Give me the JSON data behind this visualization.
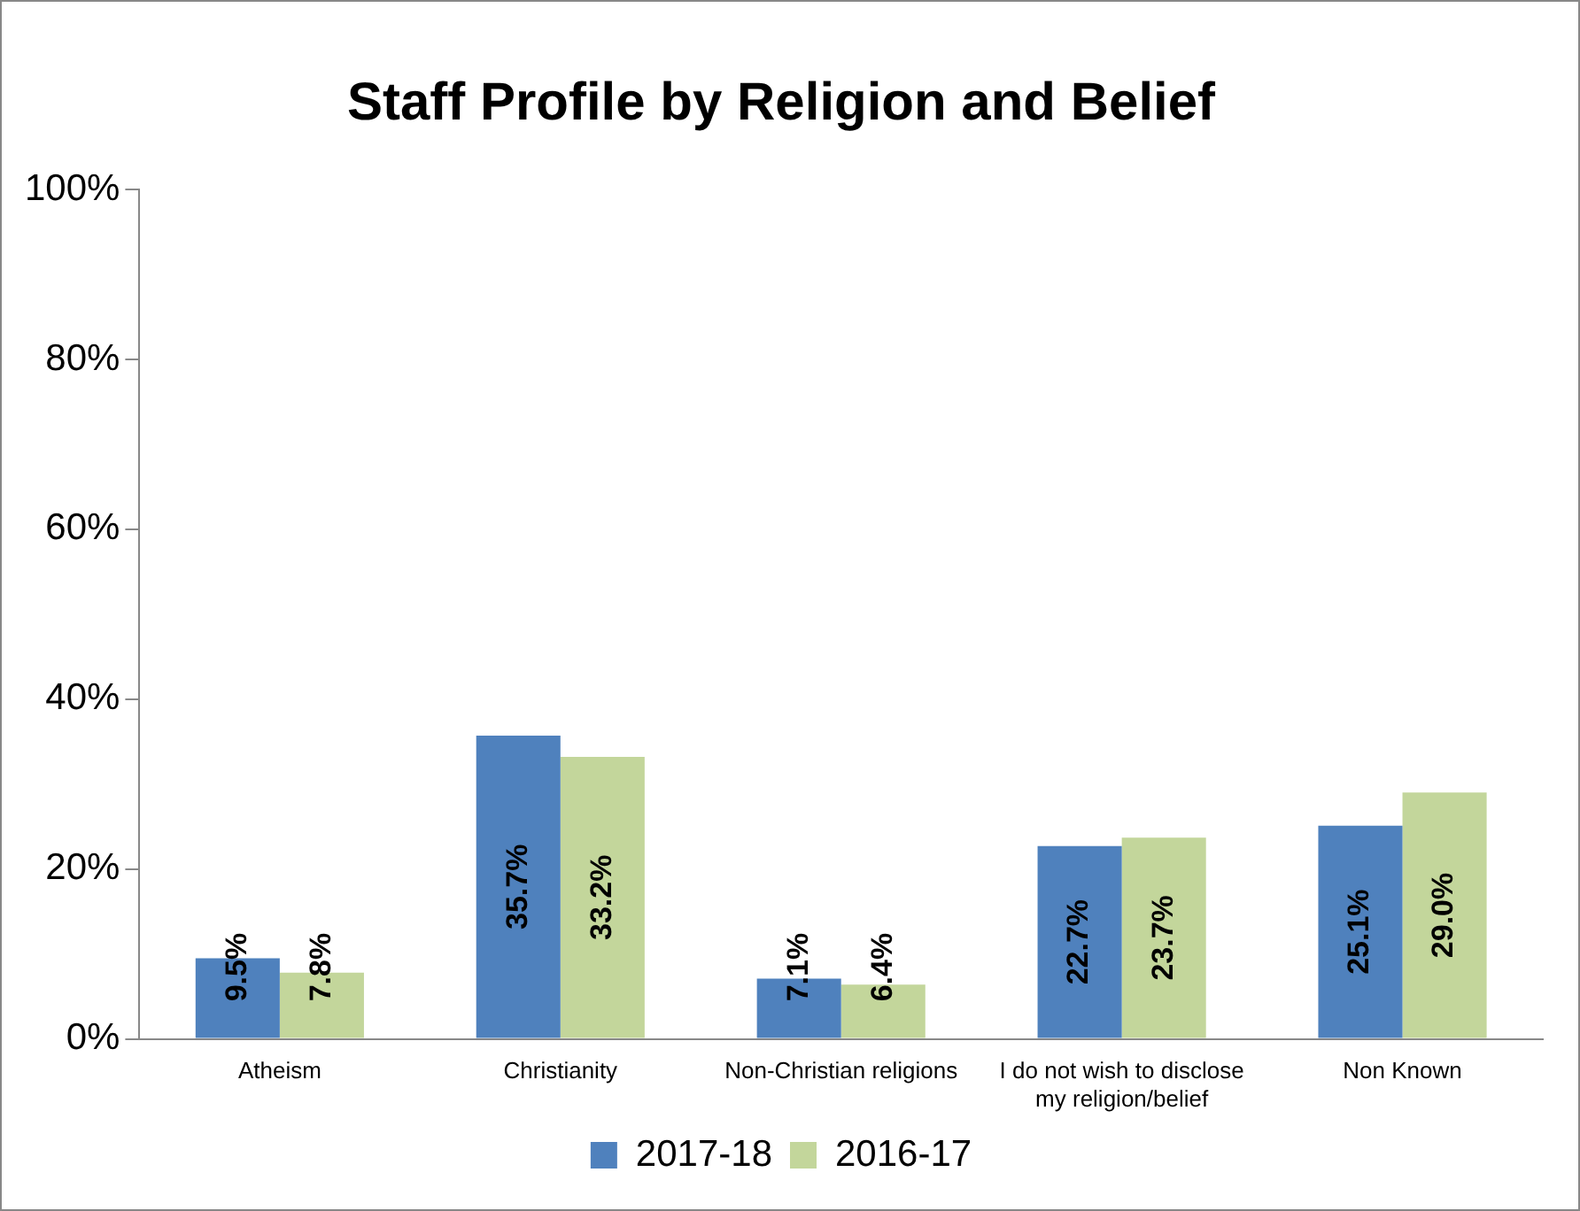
{
  "chart_data": {
    "type": "bar",
    "title": "Staff Profile by Religion and Belief",
    "categories": [
      "Atheism",
      "Christianity",
      "Non-Christian religions",
      "I do not wish to disclose my religion/belief",
      "Non Known"
    ],
    "series": [
      {
        "name": "2017-18",
        "color": "#4f81bd",
        "values": [
          9.5,
          35.7,
          7.1,
          22.7,
          25.1
        ],
        "value_labels": [
          "9.5%",
          "35.7%",
          "7.1%",
          "22.7%",
          "25.1%"
        ]
      },
      {
        "name": "2016-17",
        "color": "#c3d69b",
        "values": [
          7.8,
          33.2,
          6.4,
          23.7,
          29.0
        ],
        "value_labels": [
          "7.8%",
          "33.2%",
          "6.4%",
          "23.7%",
          "29.0%"
        ]
      }
    ],
    "ylim": [
      0,
      100
    ],
    "yticks": [
      {
        "value": 0,
        "label": "0%"
      },
      {
        "value": 20,
        "label": "20%"
      },
      {
        "value": 40,
        "label": "40%"
      },
      {
        "value": 60,
        "label": "60%"
      },
      {
        "value": 80,
        "label": "80%"
      },
      {
        "value": 100,
        "label": "100%"
      }
    ],
    "grid": false,
    "legend": "bottom"
  }
}
